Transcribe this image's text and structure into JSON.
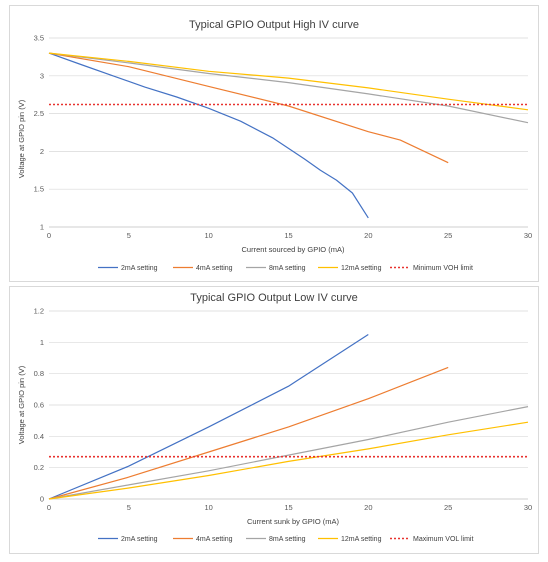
{
  "chart_data": [
    {
      "type": "line",
      "title": "Typical GPIO Output High IV curve",
      "xlabel": "Current sourced by GPIO (mA)",
      "ylabel": "Voltage at GPIO pin (V)",
      "xlim": [
        0,
        30
      ],
      "ylim": [
        1,
        3.5
      ],
      "x_ticks": [
        0,
        5,
        10,
        15,
        20,
        25,
        30
      ],
      "y_ticks": [
        1,
        1.5,
        2,
        2.5,
        3,
        3.5
      ],
      "y_tick_labels": [
        "1",
        "1.5",
        "2",
        "2.5",
        "3",
        "3.5"
      ],
      "grid": true,
      "legend_position": "bottom",
      "series": [
        {
          "name": "2mA setting",
          "color": "#4472C4",
          "x": [
            0,
            2,
            4,
            6,
            8,
            10,
            12,
            14,
            16,
            17,
            18,
            19,
            20
          ],
          "y": [
            3.3,
            3.15,
            3.0,
            2.85,
            2.72,
            2.57,
            2.4,
            2.18,
            1.9,
            1.75,
            1.62,
            1.45,
            1.12
          ]
        },
        {
          "name": "4mA setting",
          "color": "#ED7D31",
          "x": [
            0,
            5,
            10,
            15,
            20,
            22,
            25
          ],
          "y": [
            3.3,
            3.12,
            2.86,
            2.6,
            2.26,
            2.15,
            1.85
          ]
        },
        {
          "name": "8mA setting",
          "color": "#A5A5A5",
          "x": [
            0,
            5,
            10,
            15,
            20,
            25,
            30
          ],
          "y": [
            3.3,
            3.17,
            3.03,
            2.91,
            2.76,
            2.6,
            2.38
          ]
        },
        {
          "name": "12mA setting",
          "color": "#FFC000",
          "x": [
            0,
            5,
            10,
            15,
            20,
            25,
            30
          ],
          "y": [
            3.3,
            3.19,
            3.06,
            2.97,
            2.84,
            2.69,
            2.55
          ]
        },
        {
          "name": "Minimum VOH limit",
          "color": "#E8322F",
          "dashed": true,
          "x": [
            0,
            30
          ],
          "y": [
            2.62,
            2.62
          ]
        }
      ]
    },
    {
      "type": "line",
      "title": "Typical GPIO Output Low IV curve",
      "xlabel": "Current sunk by GPIO (mA)",
      "ylabel": "Voltage at GPIO pin (V)",
      "xlim": [
        0,
        30
      ],
      "ylim": [
        0,
        1.2
      ],
      "x_ticks": [
        0,
        5,
        10,
        15,
        20,
        25,
        30
      ],
      "y_ticks": [
        0,
        0.2,
        0.4,
        0.6,
        0.8,
        1,
        1.2
      ],
      "y_tick_labels": [
        "0",
        "0.2",
        "0.4",
        "0.6",
        "0.8",
        "1",
        "1.2"
      ],
      "grid": true,
      "legend_position": "bottom",
      "series": [
        {
          "name": "2mA setting",
          "color": "#4472C4",
          "x": [
            0,
            5,
            10,
            15,
            20
          ],
          "y": [
            0,
            0.21,
            0.46,
            0.72,
            1.05
          ]
        },
        {
          "name": "4mA setting",
          "color": "#ED7D31",
          "x": [
            0,
            5,
            10,
            15,
            20,
            25
          ],
          "y": [
            0,
            0.14,
            0.3,
            0.46,
            0.64,
            0.84
          ]
        },
        {
          "name": "8mA setting",
          "color": "#A5A5A5",
          "x": [
            0,
            5,
            10,
            15,
            20,
            25,
            30
          ],
          "y": [
            0,
            0.09,
            0.18,
            0.28,
            0.38,
            0.49,
            0.59
          ]
        },
        {
          "name": "12mA setting",
          "color": "#FFC000",
          "x": [
            0,
            5,
            10,
            15,
            20,
            25,
            30
          ],
          "y": [
            0,
            0.07,
            0.15,
            0.24,
            0.32,
            0.41,
            0.49
          ]
        },
        {
          "name": "Maximum VOL limit",
          "color": "#E8322F",
          "dashed": true,
          "x": [
            0,
            30
          ],
          "y": [
            0.27,
            0.27
          ]
        }
      ]
    }
  ]
}
